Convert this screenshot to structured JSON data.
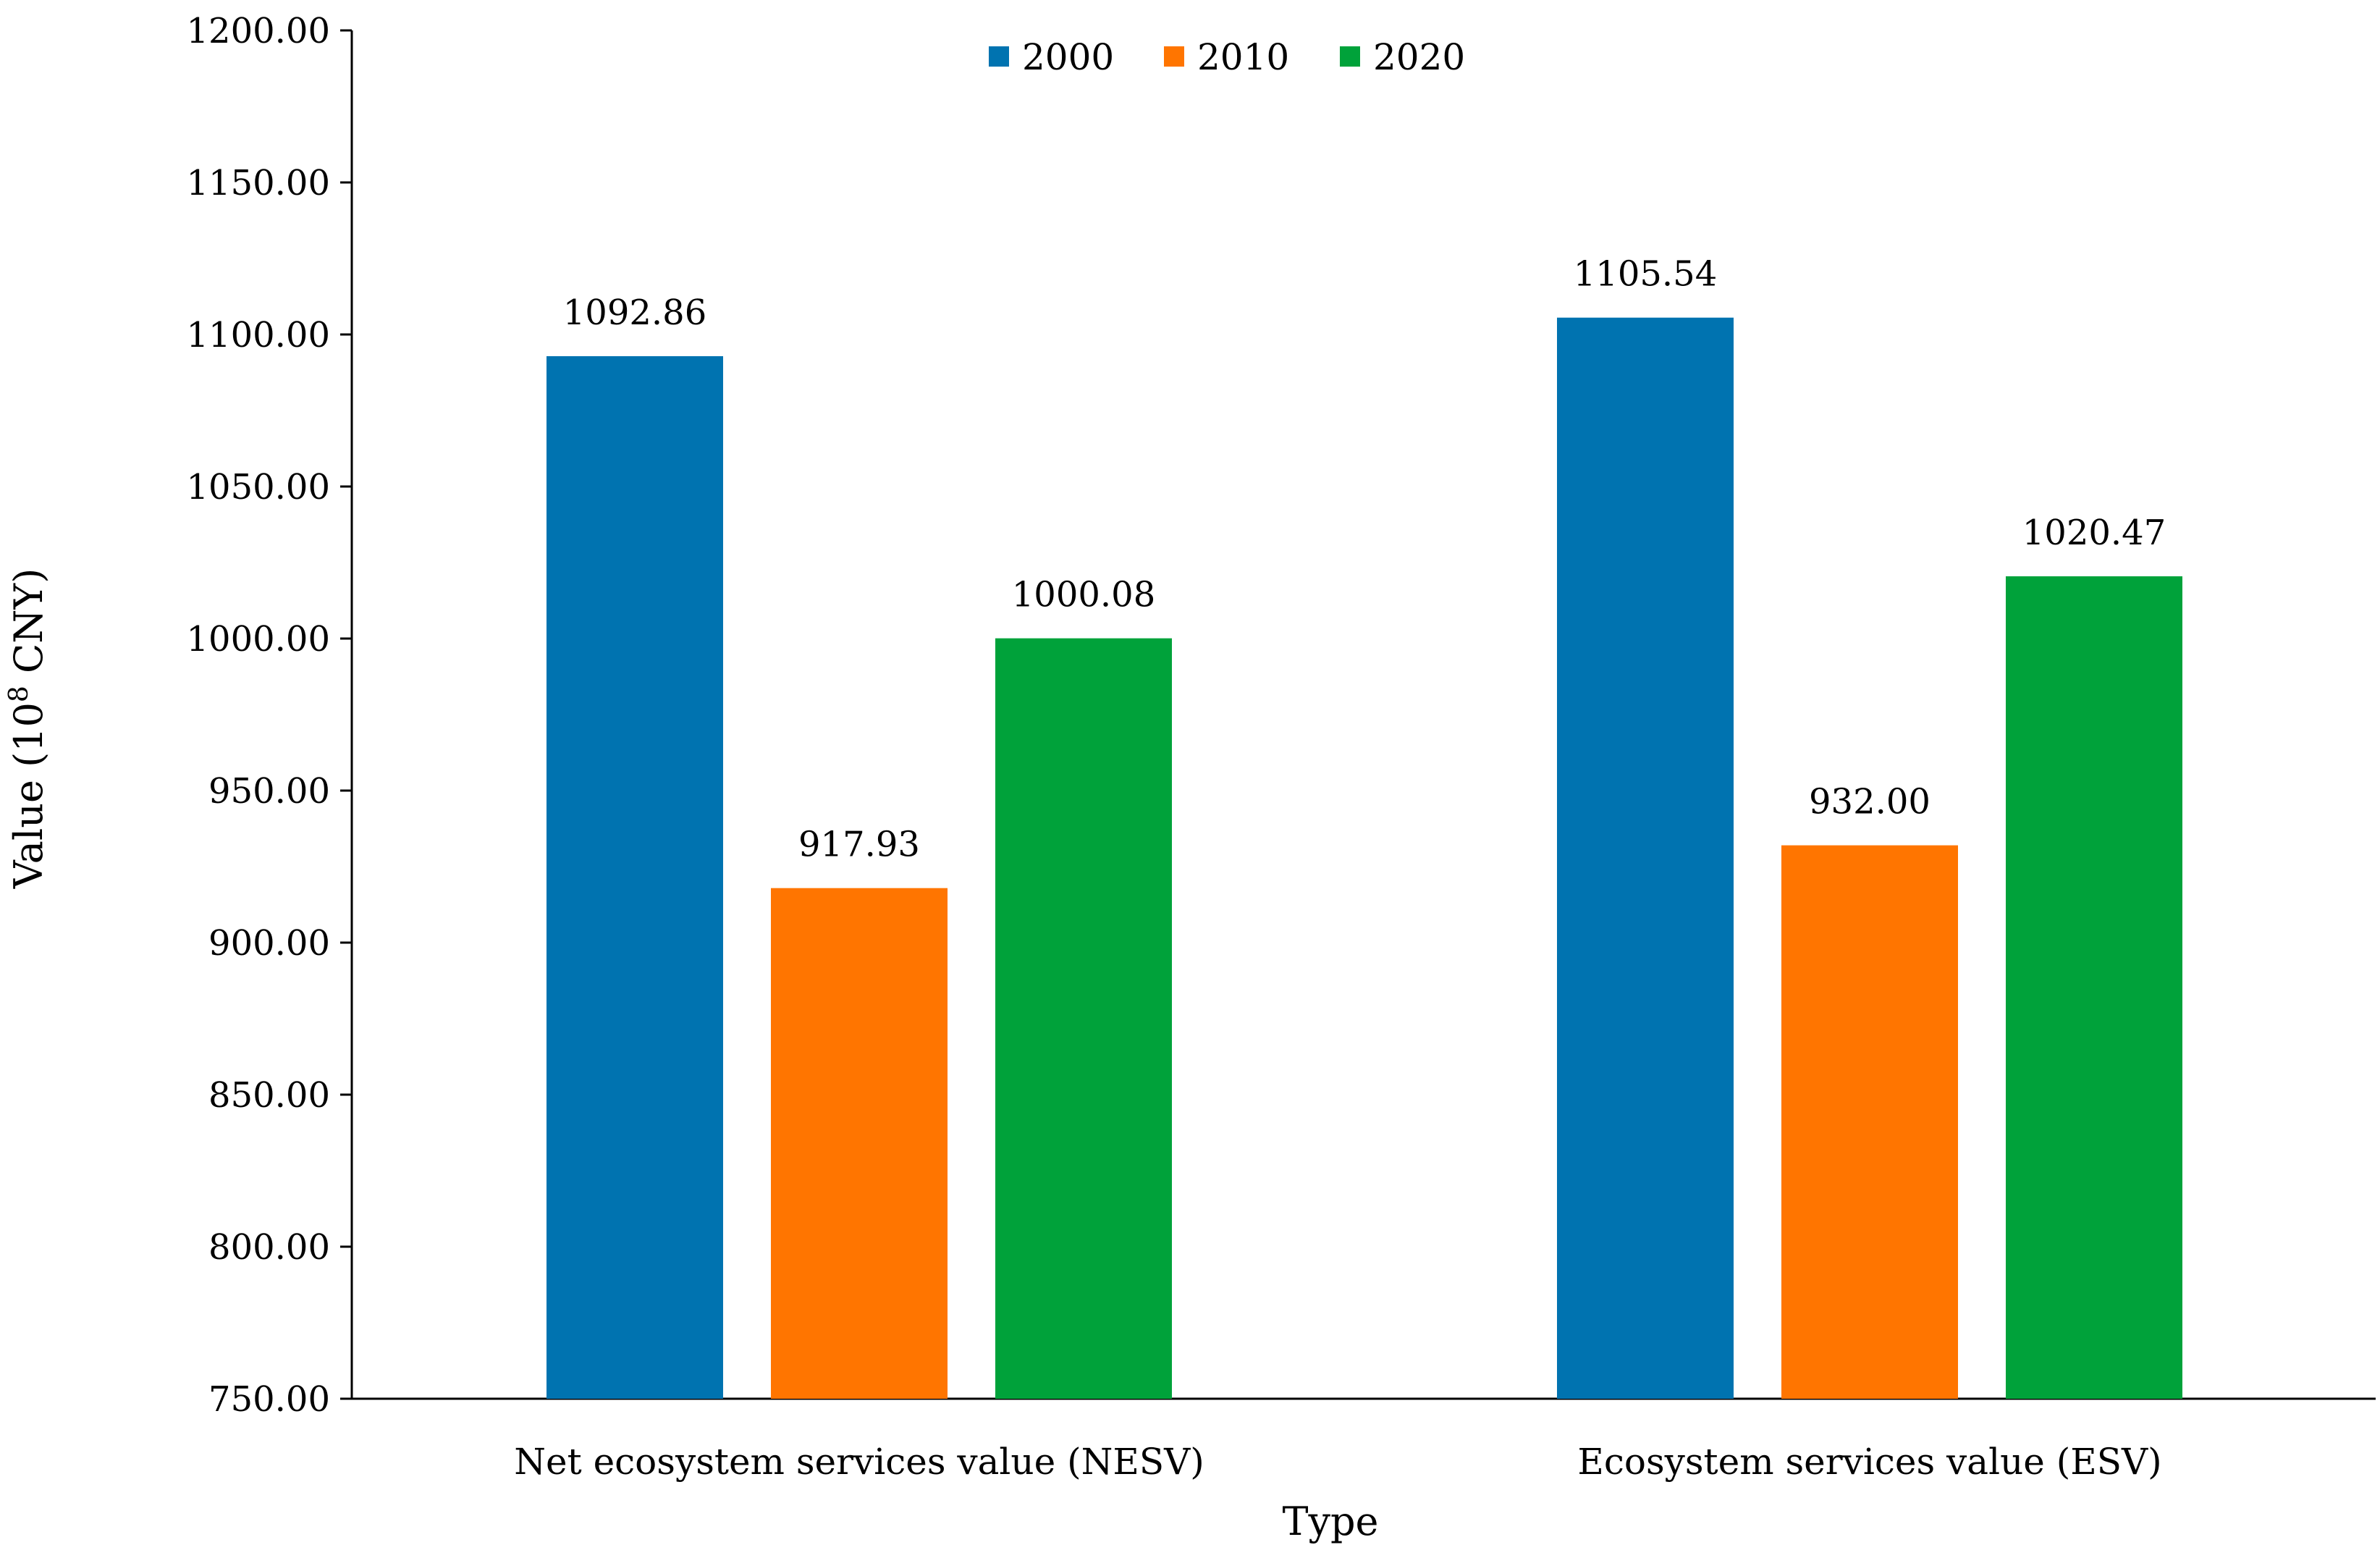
{
  "chart_data": {
    "type": "bar",
    "title": "",
    "xlabel": "Type",
    "ylabel": "Value (10",
    "ylabel_superscript": "8",
    "ylabel_suffix": " CNY)",
    "ylim": [
      750,
      1200
    ],
    "yticks": [
      750,
      800,
      850,
      900,
      950,
      1000,
      1050,
      1100,
      1150,
      1200
    ],
    "ytick_labels": [
      "750.00",
      "800.00",
      "850.00",
      "900.00",
      "950.00",
      "1000.00",
      "1050.00",
      "1100.00",
      "1150.00",
      "1200.00"
    ],
    "grid": false,
    "legend_position": "top-center",
    "categories": [
      "Net ecosystem services value (NESV)",
      "Ecosystem services value (ESV)"
    ],
    "series": [
      {
        "name": "2000",
        "color": "#0073B0",
        "values": [
          1092.86,
          1105.54
        ],
        "labels": [
          "1092.86",
          "1105.54"
        ]
      },
      {
        "name": "2010",
        "color": "#FF7500",
        "values": [
          917.93,
          932.0
        ],
        "labels": [
          "917.93",
          "932.00"
        ]
      },
      {
        "name": "2020",
        "color": "#00A23A",
        "values": [
          1000.08,
          1020.47
        ],
        "labels": [
          "1000.08",
          "1020.47"
        ]
      }
    ]
  }
}
